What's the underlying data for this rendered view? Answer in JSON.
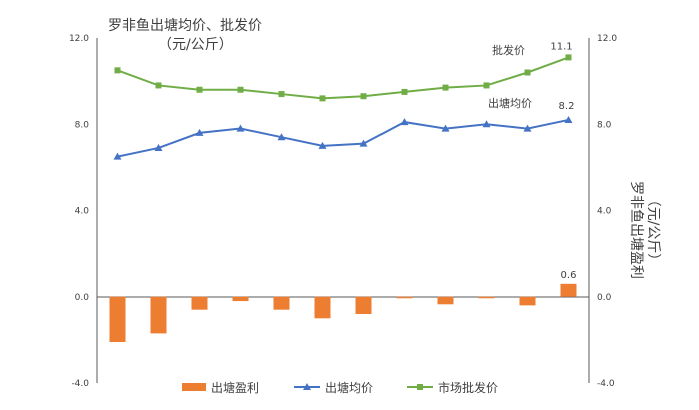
{
  "chart_data": {
    "type": "bar+line",
    "title_line1": "罗非鱼出塘均价、批发价",
    "title_line2": "（元/公斤）",
    "y_left": {
      "ylim": [
        -4.0,
        12.0
      ],
      "ticks": [
        "12.0",
        "8.0",
        "4.0",
        "0.0",
        "-4.0"
      ],
      "tick_values": [
        12,
        8,
        4,
        0,
        -4
      ]
    },
    "y_right": {
      "ylim": [
        -4.0,
        12.0
      ],
      "ticks": [
        "12.0",
        "8.0",
        "4.0",
        "0.0",
        "-4.0"
      ],
      "tick_values": [
        12,
        8,
        4,
        0,
        -4
      ],
      "label": "罗非鱼出塘盈利",
      "label_unit": "（元/公斤）"
    },
    "n_points": 12,
    "series": [
      {
        "name": "出塘盈利",
        "kind": "bar",
        "color": "#ed7d31",
        "values": [
          -2.1,
          -1.7,
          -0.6,
          -0.2,
          -0.6,
          -1.0,
          -0.8,
          -0.05,
          -0.35,
          -0.05,
          -0.4,
          0.6
        ]
      },
      {
        "name": "出塘均价",
        "kind": "line",
        "marker": "triangle",
        "color": "#4472c4",
        "values": [
          6.5,
          6.9,
          7.6,
          7.8,
          7.4,
          7.0,
          7.1,
          8.1,
          7.8,
          8.0,
          7.8,
          8.2
        ]
      },
      {
        "name": "市场批发价",
        "kind": "line",
        "marker": "square",
        "color": "#70ad47",
        "values": [
          10.5,
          9.8,
          9.6,
          9.6,
          9.4,
          9.2,
          9.3,
          9.5,
          9.7,
          9.8,
          10.4,
          11.1
        ]
      }
    ],
    "data_labels": {
      "last_bar": "0.6",
      "last_avg": "8.2",
      "last_wholesale": "11.1"
    },
    "annotations": {
      "wholesale": "批发价",
      "avg": "出塘均价"
    },
    "legend": {
      "position": "bottom",
      "items": [
        "出塘盈利",
        "出塘均价",
        "市场批发价"
      ]
    }
  }
}
